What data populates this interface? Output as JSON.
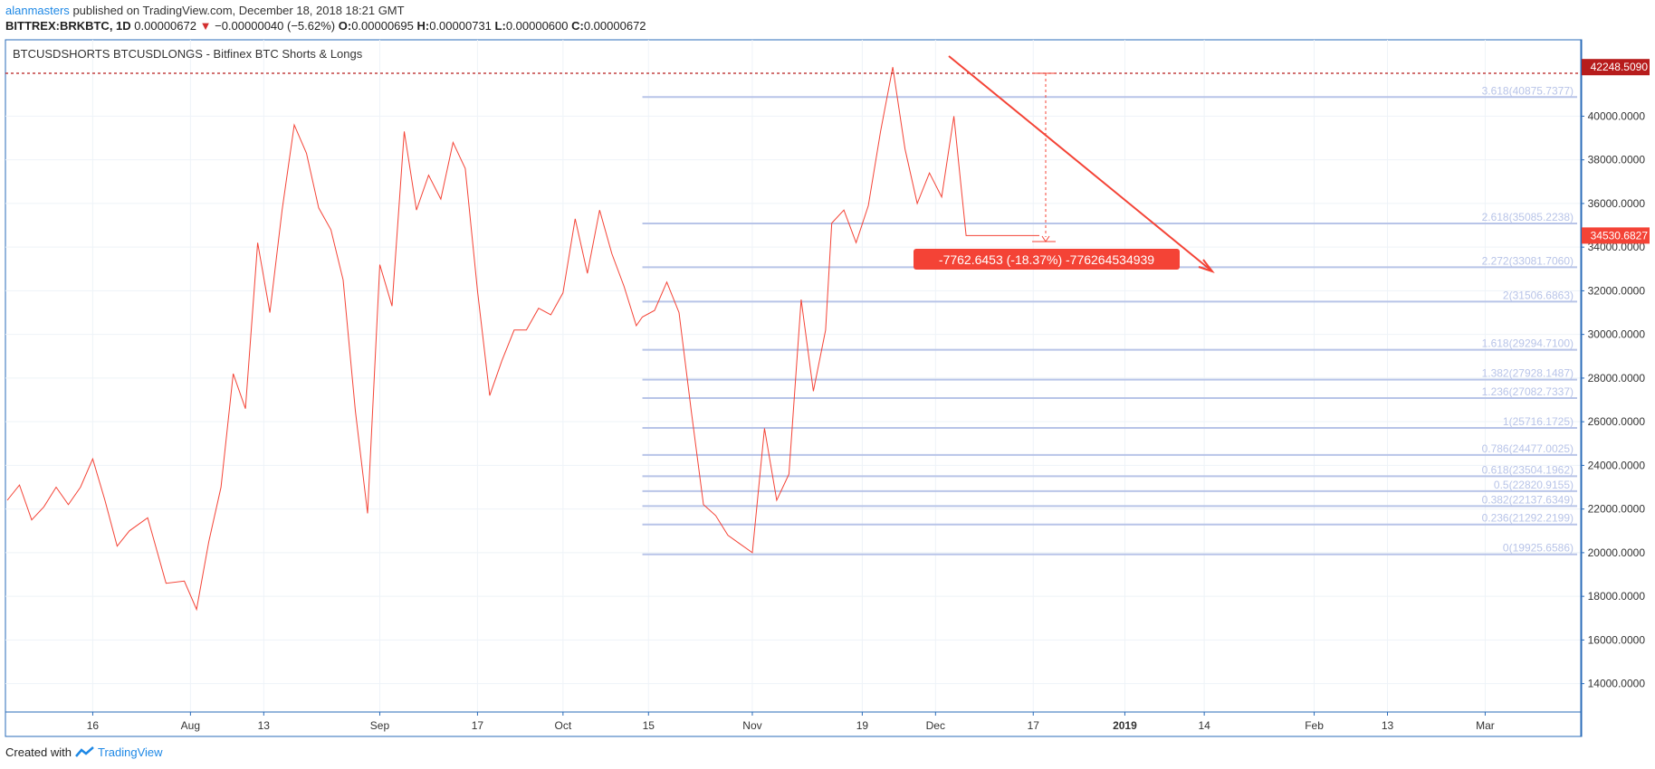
{
  "header": {
    "author": "alanmasters",
    "published": "published on TradingView.com, December 18, 2018 18:21 GMT",
    "symbol": "BITTREX:BRKBTC, 1D",
    "price": "0.00000672",
    "change": "−0.00000040 (−5.62%)",
    "o_label": "O:",
    "o": "0.00000695",
    "h_label": "H:",
    "h": "0.00000731",
    "l_label": "L:",
    "l": "0.00000600",
    "c_label": "C:",
    "c": "0.00000672"
  },
  "footer": {
    "created_with": "Created with",
    "brand": "TradingView"
  },
  "chart_data": {
    "type": "line",
    "title": "BTCUSDSHORTS BTCUSDLONGS - Bitfinex BTC Shorts & Longs",
    "x_ticks": [
      "16",
      "Aug",
      "13",
      "Sep",
      "17",
      "Oct",
      "15",
      "Nov",
      "19",
      "Dec",
      "17",
      "2019",
      "14",
      "Feb",
      "13",
      "Mar"
    ],
    "y_ticks": [
      "14000.0000",
      "16000.0000",
      "18000.0000",
      "20000.0000",
      "22000.0000",
      "24000.0000",
      "26000.0000",
      "28000.0000",
      "30000.0000",
      "32000.0000",
      "34000.0000",
      "36000.0000",
      "38000.0000",
      "40000.0000"
    ],
    "ylim": [
      12700,
      43500
    ],
    "grid": true,
    "series": [
      {
        "color": "#f44336",
        "x": [
          "2018-07-02",
          "2018-07-04",
          "2018-07-06",
          "2018-07-08",
          "2018-07-10",
          "2018-07-12",
          "2018-07-14",
          "2018-07-16",
          "2018-07-18",
          "2018-07-20",
          "2018-07-22",
          "2018-07-25",
          "2018-07-28",
          "2018-07-31",
          "2018-08-02",
          "2018-08-04",
          "2018-08-06",
          "2018-08-08",
          "2018-08-10",
          "2018-08-12",
          "2018-08-14",
          "2018-08-16",
          "2018-08-18",
          "2018-08-20",
          "2018-08-22",
          "2018-08-24",
          "2018-08-26",
          "2018-08-28",
          "2018-08-30",
          "2018-09-01",
          "2018-09-03",
          "2018-09-05",
          "2018-09-07",
          "2018-09-09",
          "2018-09-11",
          "2018-09-13",
          "2018-09-15",
          "2018-09-17",
          "2018-09-19",
          "2018-09-21",
          "2018-09-23",
          "2018-09-25",
          "2018-09-27",
          "2018-09-29",
          "2018-10-01",
          "2018-10-03",
          "2018-10-05",
          "2018-10-07",
          "2018-10-09",
          "2018-10-11",
          "2018-10-13",
          "2018-10-14",
          "2018-10-16",
          "2018-10-18",
          "2018-10-20",
          "2018-10-22",
          "2018-10-24",
          "2018-10-26",
          "2018-10-28",
          "2018-10-30",
          "2018-11-01",
          "2018-11-03",
          "2018-11-05",
          "2018-11-07",
          "2018-11-09",
          "2018-11-11",
          "2018-11-13",
          "2018-11-14",
          "2018-11-16",
          "2018-11-18",
          "2018-11-20",
          "2018-11-22",
          "2018-11-24",
          "2018-11-26",
          "2018-11-28",
          "2018-11-30",
          "2018-12-02",
          "2018-12-04",
          "2018-12-06",
          "2018-12-08",
          "2018-12-10",
          "2018-12-12",
          "2018-12-14",
          "2018-12-16",
          "2018-12-18"
        ],
        "values": [
          22400,
          23100,
          21500,
          22100,
          23000,
          22200,
          23000,
          24300,
          22400,
          20300,
          21000,
          21600,
          18600,
          18700,
          17400,
          20500,
          23000,
          28200,
          26600,
          34200,
          31000,
          35700,
          39600,
          38300,
          35800,
          34800,
          32500,
          26500,
          21800,
          33200,
          31300,
          39300,
          35700,
          37300,
          36200,
          38800,
          37600,
          32000,
          27200,
          28800,
          30200,
          30200,
          31200,
          30900,
          31900,
          35300,
          32800,
          35700,
          33700,
          32200,
          30400,
          30800,
          31100,
          32400,
          31000,
          26500,
          22200,
          21700,
          20800,
          20400,
          20000,
          25700,
          22400,
          23600,
          31600,
          27400,
          30200,
          35100,
          35700,
          34200,
          35900,
          39300,
          42248,
          38500,
          36000,
          37400,
          36300,
          40000,
          34530,
          34530,
          34530,
          34530,
          34530,
          34530,
          34530
        ]
      }
    ],
    "fibonacci": [
      {
        "label": "3.618(40875.7377)",
        "value": 40875.7377
      },
      {
        "label": "2.618(35085.2238)",
        "value": 35085.2238
      },
      {
        "label": "2.272(33081.7060)",
        "value": 33081.706
      },
      {
        "label": "2(31506.6863)",
        "value": 31506.6863
      },
      {
        "label": "1.618(29294.7100)",
        "value": 29294.71
      },
      {
        "label": "1.382(27928.1487)",
        "value": 27928.1487
      },
      {
        "label": "1.236(27082.7337)",
        "value": 27082.7337
      },
      {
        "label": "1(25716.1725)",
        "value": 25716.1725
      },
      {
        "label": "0.786(24477.0025)",
        "value": 24477.0025
      },
      {
        "label": "0.618(23504.1962)",
        "value": 23504.1962
      },
      {
        "label": "0.5(22820.9155)",
        "value": 22820.9155
      },
      {
        "label": "0.382(22137.6349)",
        "value": 22137.6349
      },
      {
        "label": "0.236(21292.2199)",
        "value": 21292.2199
      },
      {
        "label": "0(19925.6586)",
        "value": 19925.6586
      }
    ],
    "price_labels": [
      {
        "text": "42248.5090",
        "value": 42248.509,
        "color": "#b71c1c"
      },
      {
        "text": "34530.6827",
        "value": 34530.6827,
        "color": "#f44336"
      }
    ],
    "measure_label": "-7762.6453 (-18.37%) -776264534939",
    "accent": "#f44336",
    "fib_color": "#b8c4e8"
  }
}
